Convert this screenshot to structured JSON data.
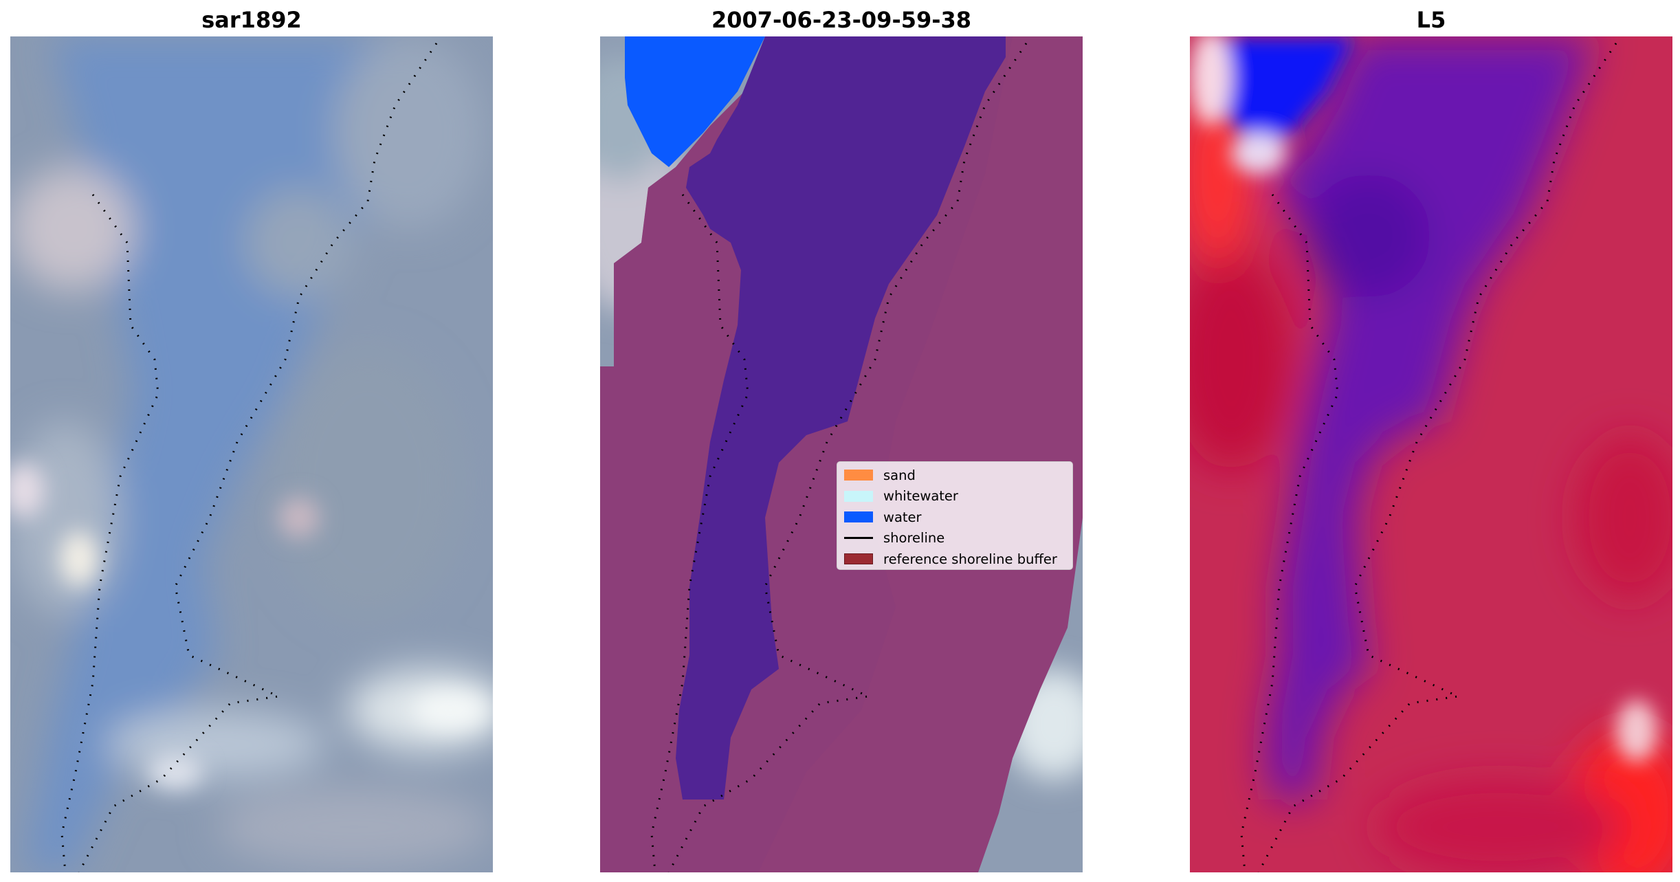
{
  "panels": [
    {
      "title": "sar1892"
    },
    {
      "title": "2007-06-23-09-59-38"
    },
    {
      "title": "L5"
    }
  ],
  "legend": {
    "items": [
      {
        "label": "sand",
        "color": "#ff8c42",
        "kind": "patch"
      },
      {
        "label": "whitewater",
        "color": "#c8f5fa",
        "kind": "patch"
      },
      {
        "label": "water",
        "color": "#0a5aff",
        "kind": "patch"
      },
      {
        "label": "shoreline",
        "color": "#000000",
        "kind": "line"
      },
      {
        "label": "reference shoreline buffer",
        "color": "#9b2a32",
        "kind": "patch"
      }
    ]
  },
  "colors": {
    "rgb_base": "#7f93b0",
    "rgb_channel": "#6d8ec2",
    "classified_water": "#0a5aff",
    "classified_channel": "#512494",
    "classified_buffer": "#8f3f78",
    "index_blue": "#0818f5",
    "index_purple": "#5a0fa8",
    "index_red": "#c21240"
  }
}
